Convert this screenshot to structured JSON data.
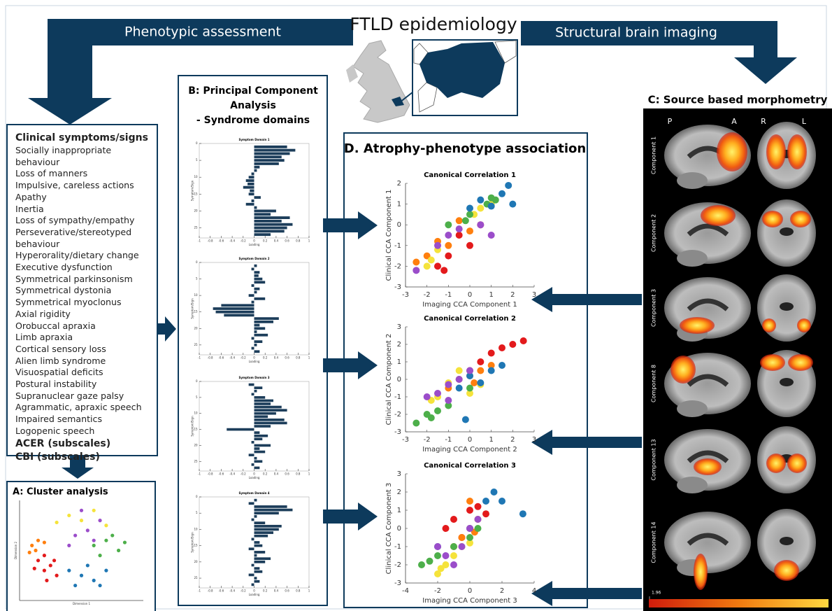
{
  "header": {
    "title": "FTLD epidemiology",
    "left_arrow": "Phenotypic assessment",
    "right_arrow": "Structural brain imaging"
  },
  "clinical": {
    "heading": "Clinical symptoms/signs",
    "items": [
      "Socially inappropriate behaviour",
      "Loss of manners",
      "Impulsive, careless actions",
      "Apathy",
      "Inertia",
      "Loss of sympathy/empathy",
      "Perseverative/stereotyped behaviour",
      "Hyperorality/dietary change",
      "Executive dysfunction",
      "Symmetrical parkinsonism",
      "Symmetrical dystonia",
      "Symmetrical myoclonus",
      "Axial rigidity",
      "Orobuccal apraxia",
      "Limb apraxia",
      "Cortical sensory loss",
      "Alien limb syndrome",
      "Visuospatial deficits",
      "Postural instability",
      "Supranuclear gaze palsy",
      "Agrammatic, apraxic speech",
      "Impaired semantics",
      "Logopenic speech"
    ],
    "scales": [
      "ACER (subscales)",
      "CBI (subscales)"
    ]
  },
  "panel_a": {
    "title": "A: Cluster analysis"
  },
  "panel_b": {
    "title": [
      "B: Principal Component",
      "Analysis",
      "- Syndrome domains"
    ]
  },
  "panel_c": {
    "title": "C: Source based morphometry",
    "orientation": [
      "P",
      "A",
      "R",
      "L"
    ],
    "components": [
      "Component 1",
      "Component 2",
      "Component 3",
      "Component 8",
      "Component 13",
      "Component 14"
    ],
    "colorbar": {
      "ticks": [
        1.96
      ]
    }
  },
  "panel_d": {
    "title": "D. Atrophy-phenotype association"
  },
  "chart_data": [
    {
      "type": "scatter",
      "xlabel": "Dimension 1",
      "ylabel": "Dimension 2",
      "xlim": [
        -5,
        5
      ],
      "ylim": [
        -5,
        5
      ],
      "series": [
        {
          "color": "#e31a1c",
          "x": [
            -3.5,
            -3,
            -2.5,
            -3,
            -2,
            -3.8,
            -2.8,
            -2.2
          ],
          "values": [
            -1,
            -2,
            -1.5,
            -0.5,
            -2.5,
            -1.8,
            -3,
            -1
          ]
        },
        {
          "color": "#ff7f0e",
          "x": [
            -4,
            -3.5,
            -4.2,
            -3,
            -3.7
          ],
          "values": [
            0.5,
            1,
            -0.2,
            0.8,
            0
          ]
        },
        {
          "color": "#f5e33b",
          "x": [
            -1,
            0,
            2,
            -2,
            1
          ],
          "values": [
            3.5,
            3,
            2.5,
            2.8,
            4
          ]
        },
        {
          "color": "#4daf4a",
          "x": [
            1,
            2,
            3,
            2.5,
            1.5,
            3.5
          ],
          "values": [
            0.5,
            1,
            0,
            1.5,
            -0.5,
            0.8
          ]
        },
        {
          "color": "#1f77b4",
          "x": [
            -1,
            0,
            1,
            0.5,
            -0.5,
            2,
            1.5
          ],
          "values": [
            -2,
            -2.5,
            -3,
            -1.5,
            -3.5,
            -2,
            -3.5
          ]
        },
        {
          "color": "#9b4dca",
          "x": [
            -0.5,
            0.5,
            1,
            -1,
            0,
            1.5
          ],
          "values": [
            1.5,
            2,
            1,
            0.5,
            4,
            3
          ]
        }
      ]
    },
    {
      "type": "barh",
      "title": "Symptom Domain 1",
      "xlabel": "Loading",
      "ylabel": "Symptom/Sign",
      "color": "#1c3d5a",
      "xlim": [
        -1,
        1
      ],
      "xticks": [
        -1,
        -0.8,
        -0.6,
        -0.4,
        -0.2,
        0,
        0.2,
        0.4,
        0.6,
        0.8,
        1
      ],
      "ylim": [
        0,
        28
      ],
      "yticks": [
        0,
        5,
        10,
        15,
        20,
        25
      ],
      "y_reversed": true,
      "values": [
        0.6,
        0.75,
        0.65,
        0.5,
        0.55,
        0.45,
        0.1,
        0.05,
        -0.05,
        -0.1,
        -0.15,
        -0.12,
        -0.2,
        -0.08,
        -0.1,
        0.12,
        -0.05,
        -0.15,
        0.05,
        0.4,
        0.3,
        0.65,
        0.5,
        0.7,
        0.6,
        0.55,
        0.3
      ]
    },
    {
      "type": "barh",
      "title": "Symptom Domain 2",
      "xlabel": "Loading",
      "ylabel": "Symptom/Sign",
      "color": "#1c3d5a",
      "xlim": [
        -1,
        1
      ],
      "xticks": [
        -1,
        -0.8,
        -0.6,
        -0.4,
        -0.2,
        0,
        0.2,
        0.4,
        0.6,
        0.8,
        1
      ],
      "ylim": [
        0,
        28
      ],
      "yticks": [
        0,
        5,
        10,
        15,
        20,
        25
      ],
      "y_reversed": true,
      "values": [
        0.05,
        -0.05,
        0.1,
        0.08,
        0.15,
        0.2,
        -0.05,
        0.1,
        0.05,
        -0.1,
        0.2,
        -0.05,
        -0.6,
        -0.75,
        -0.7,
        -0.55,
        0.45,
        0.35,
        0.1,
        0.2,
        0.05,
        0.25,
        -0.05,
        0.15,
        0.05,
        -0.05,
        0.1
      ]
    },
    {
      "type": "barh",
      "title": "Symptom Domain 3",
      "xlabel": "Loading",
      "ylabel": "Symptom/Sign",
      "color": "#1c3d5a",
      "xlim": [
        -1,
        1
      ],
      "xticks": [
        -1,
        -0.8,
        -0.6,
        -0.4,
        -0.2,
        0,
        0.2,
        0.4,
        0.6,
        0.8,
        1
      ],
      "ylim": [
        0,
        28
      ],
      "yticks": [
        0,
        5,
        10,
        15,
        20,
        25
      ],
      "y_reversed": true,
      "values": [
        -0.1,
        0.15,
        0.05,
        -0.05,
        0.2,
        0.35,
        0.3,
        0.5,
        0.6,
        0.4,
        0.25,
        0.55,
        0.6,
        0.3,
        -0.5,
        0.1,
        0.25,
        0.15,
        -0.05,
        0.3,
        0.1,
        0.2,
        -0.1,
        0.05,
        0.15,
        -0.05,
        0.1
      ]
    },
    {
      "type": "barh",
      "title": "Symptom Domain 4",
      "xlabel": "Loading",
      "ylabel": "Symptom/Sign",
      "color": "#1c3d5a",
      "xlim": [
        -1,
        1
      ],
      "xticks": [
        -1,
        -0.8,
        -0.6,
        -0.4,
        -0.2,
        0,
        0.2,
        0.4,
        0.6,
        0.8,
        1
      ],
      "ylim": [
        0,
        28
      ],
      "yticks": [
        0,
        5,
        10,
        15,
        20,
        25
      ],
      "y_reversed": true,
      "values": [
        0.05,
        -0.1,
        0.6,
        0.7,
        0.45,
        0.05,
        -0.05,
        0.2,
        0.5,
        0.45,
        0.35,
        0.25,
        -0.05,
        0.1,
        0.15,
        -0.1,
        0.2,
        0.05,
        0.3,
        0.2,
        -0.05,
        0.1,
        0.15,
        -0.1,
        0.05,
        0.1,
        -0.05
      ]
    },
    {
      "type": "scatter",
      "title": "Canonical Correlation 1",
      "xlabel": "Imaging CCA Component 1",
      "ylabel": "Clinical CCA Component 1",
      "xlim": [
        -3,
        3
      ],
      "xticks": [
        -3,
        -2,
        -1,
        0,
        1,
        2,
        3
      ],
      "ylim": [
        -3,
        2
      ],
      "yticks": [
        -3,
        -2,
        -1,
        0,
        1,
        2
      ],
      "series": [
        {
          "color": "#e31a1c",
          "x": [
            -1.5,
            -1,
            -0.5,
            0,
            0.5,
            -1.2
          ],
          "values": [
            -2,
            -1.5,
            -0.5,
            -1,
            0,
            -2.2
          ]
        },
        {
          "color": "#ff7f0e",
          "x": [
            -2,
            -1.5,
            -1,
            0,
            -0.5,
            -2.5
          ],
          "values": [
            -1.5,
            -0.8,
            -1,
            -0.3,
            0.2,
            -1.8
          ]
        },
        {
          "color": "#f5e33b",
          "x": [
            -2,
            -1.8,
            0.5,
            1,
            -1.5,
            0.2
          ],
          "values": [
            -2,
            -1.7,
            0.8,
            1,
            -1.2,
            0.5
          ]
        },
        {
          "color": "#4daf4a",
          "x": [
            -1,
            0,
            1,
            1.2,
            -0.2,
            0.8
          ],
          "values": [
            0,
            0.5,
            1.3,
            1.2,
            0.2,
            1
          ]
        },
        {
          "color": "#1f77b4",
          "x": [
            0,
            0.5,
            1,
            1.5,
            2,
            1.8
          ],
          "values": [
            0.8,
            1.2,
            0.9,
            1.5,
            1,
            1.9
          ]
        },
        {
          "color": "#9b4dca",
          "x": [
            -2.5,
            -1.5,
            -0.5,
            0.5,
            1,
            -1
          ],
          "values": [
            -2.2,
            -1,
            -0.2,
            0,
            -0.5,
            -0.5
          ]
        }
      ]
    },
    {
      "type": "scatter",
      "title": "Canonical Correlation 2",
      "xlabel": "Imaging CCA Component 2",
      "ylabel": "Clinical CCA Component 2",
      "xlim": [
        -3,
        3
      ],
      "xticks": [
        -3,
        -2,
        -1,
        0,
        1,
        2,
        3
      ],
      "ylim": [
        -3,
        3
      ],
      "yticks": [
        -3,
        -2,
        -1,
        0,
        1,
        2,
        3
      ],
      "series": [
        {
          "color": "#e31a1c",
          "x": [
            0.5,
            1,
            1.5,
            2,
            2.5,
            0
          ],
          "values": [
            1,
            1.5,
            1.8,
            2,
            2.2,
            0.5
          ]
        },
        {
          "color": "#ff7f0e",
          "x": [
            -1,
            0,
            0.5,
            -0.5,
            1,
            0.2
          ],
          "values": [
            -0.5,
            0.2,
            0.5,
            0,
            0.8,
            -0.2
          ]
        },
        {
          "color": "#f5e33b",
          "x": [
            -1.5,
            -1,
            0,
            -0.5,
            0.5,
            -1.8
          ],
          "values": [
            -1,
            -0.2,
            -0.8,
            0.5,
            -0.3,
            -1.2
          ]
        },
        {
          "color": "#4daf4a",
          "x": [
            -2.5,
            -2,
            -1.8,
            -1,
            0,
            -1.5
          ],
          "values": [
            -2.5,
            -2,
            -2.2,
            -1.5,
            -0.5,
            -1.8
          ]
        },
        {
          "color": "#1f77b4",
          "x": [
            -0.5,
            0,
            0.5,
            1,
            1.5,
            -0.2
          ],
          "values": [
            -0.5,
            0.2,
            -0.2,
            0.5,
            0.8,
            -2.3
          ]
        },
        {
          "color": "#9b4dca",
          "x": [
            -2,
            -1.5,
            -1,
            -0.5,
            0,
            -1
          ],
          "values": [
            -1,
            -0.8,
            -0.3,
            0,
            0.5,
            -1.2
          ]
        }
      ]
    },
    {
      "type": "scatter",
      "title": "Canonical Correlation 3",
      "xlabel": "Imaging CCA Component 3",
      "ylabel": "Clinical CCA Component 3",
      "xlim": [
        -4,
        4
      ],
      "xticks": [
        -4,
        -2,
        0,
        2,
        4
      ],
      "ylim": [
        -3,
        3
      ],
      "yticks": [
        -3,
        -2,
        -1,
        0,
        1,
        2,
        3
      ],
      "series": [
        {
          "color": "#e31a1c",
          "x": [
            -1.5,
            -1,
            0,
            0.5,
            1,
            -0.5
          ],
          "values": [
            0,
            0.5,
            1,
            1.2,
            0.8,
            -0.5
          ]
        },
        {
          "color": "#ff7f0e",
          "x": [
            -0.5,
            0,
            0.5,
            -1,
            0.3,
            0
          ],
          "values": [
            -0.5,
            0,
            0.5,
            -1,
            -0.2,
            1.5
          ]
        },
        {
          "color": "#f5e33b",
          "x": [
            -2,
            -1.5,
            -1,
            -0.5,
            0,
            -1.8
          ],
          "values": [
            -2.5,
            -2,
            -1.5,
            -1,
            -0.8,
            -2.2
          ]
        },
        {
          "color": "#4daf4a",
          "x": [
            -3,
            -2,
            -1,
            0,
            0.5,
            -2.5
          ],
          "values": [
            -2,
            -1.5,
            -1,
            -0.5,
            0,
            -1.8
          ]
        },
        {
          "color": "#1f77b4",
          "x": [
            -2,
            0,
            1,
            1.5,
            2,
            3.3
          ],
          "values": [
            -1,
            0,
            1.5,
            2,
            1.5,
            0.8
          ]
        },
        {
          "color": "#9b4dca",
          "x": [
            -1.5,
            -1,
            -0.5,
            0,
            0.5,
            -2
          ],
          "values": [
            -1.5,
            -2,
            -1,
            0,
            0.5,
            -1
          ]
        }
      ]
    }
  ]
}
